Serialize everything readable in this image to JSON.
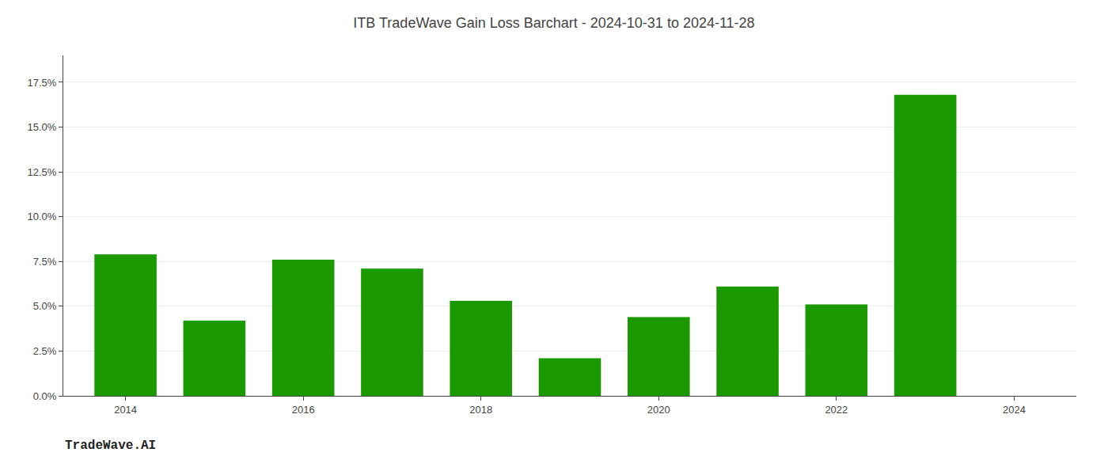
{
  "chart_data": {
    "type": "bar",
    "title": "ITB TradeWave Gain Loss Barchart - 2024-10-31 to 2024-11-28",
    "annotations": [
      "TradeWave.AI"
    ],
    "x": [
      2014,
      2015,
      2016,
      2017,
      2018,
      2019,
      2020,
      2021,
      2022,
      2023
    ],
    "values": [
      0.079,
      0.042,
      0.076,
      0.071,
      0.053,
      0.021,
      0.044,
      0.061,
      0.051,
      0.168
    ],
    "color": "#1a9a00",
    "xlim": [
      2013.3,
      2024.7
    ],
    "xticks": [
      2014,
      2016,
      2018,
      2020,
      2022,
      2024
    ],
    "ylim": [
      0,
      0.19
    ],
    "yticks": [
      {
        "value": 0.0,
        "label": "0.0%"
      },
      {
        "value": 0.025,
        "label": "2.5%"
      },
      {
        "value": 0.05,
        "label": "5.0%"
      },
      {
        "value": 0.075,
        "label": "7.5%"
      },
      {
        "value": 0.1,
        "label": "10.0%"
      },
      {
        "value": 0.125,
        "label": "12.5%"
      },
      {
        "value": 0.15,
        "label": "15.0%"
      },
      {
        "value": 0.175,
        "label": "17.5%"
      }
    ],
    "grid": true
  }
}
